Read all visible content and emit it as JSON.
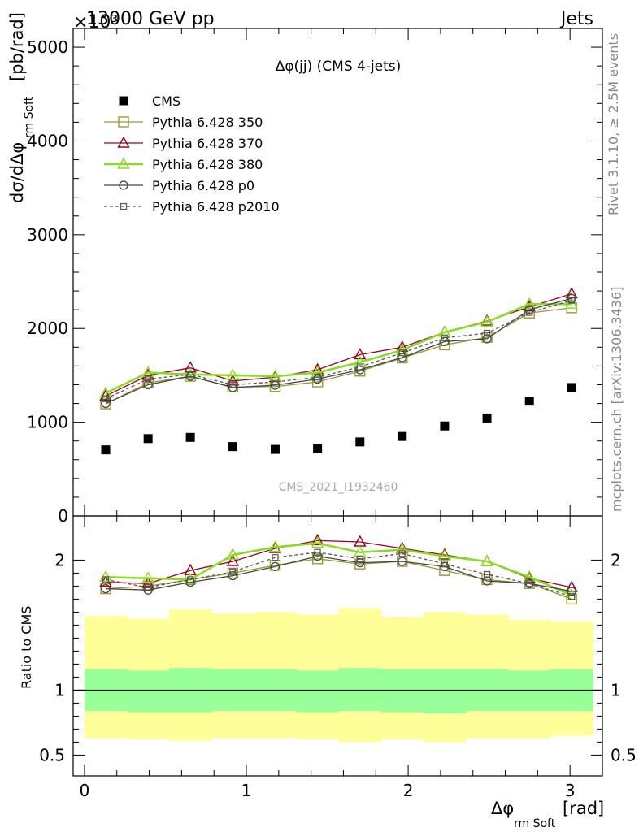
{
  "header": {
    "title_left": "13000 GeV pp",
    "title_right": "Jets",
    "exponent": "×10³"
  },
  "side_labels": {
    "rivet": "Rivet 3.1.10, ≥ 2.5M events",
    "mcplots": "mcplots.cern.ch [arXiv:1306.3436]"
  },
  "watermark": "CMS_2021_I1932460",
  "chart_data": [
    {
      "type": "scatter",
      "title": "Δφ(jj) (CMS 4-jets)",
      "ylabel": "dσ/dΔφ",
      "ylabel_sub": "rm Soft",
      "ylabel_unit": "[pb/rad]",
      "xlim": [
        -0.07,
        3.2
      ],
      "ylim": [
        0,
        5200
      ],
      "x_ticks": [
        0,
        1,
        2,
        3
      ],
      "y_ticks": [
        {
          "v": 0,
          "label": "0"
        },
        {
          "v": 1000,
          "label": "1000"
        },
        {
          "v": 2000,
          "label": "2000"
        },
        {
          "v": 3000,
          "label": "3000"
        },
        {
          "v": 4000,
          "label": "4000"
        },
        {
          "v": 5000,
          "label": "5000"
        }
      ],
      "legend_position": "top-left",
      "x": [
        0.131,
        0.393,
        0.654,
        0.916,
        1.178,
        1.44,
        1.702,
        1.963,
        2.225,
        2.487,
        2.749,
        3.01
      ],
      "series": [
        {
          "name": "CMS",
          "style": "data",
          "color": "#000000",
          "marker": "square-filled",
          "values": [
            705,
            825,
            838,
            740,
            710,
            715,
            790,
            848,
            960,
            1045,
            1225,
            1370
          ]
        },
        {
          "name": "Pythia 6.428 350",
          "color": "#999933",
          "marker": "square-open",
          "dash": "",
          "values": [
            1195,
            1420,
            1490,
            1375,
            1380,
            1430,
            1545,
            1685,
            1825,
            1905,
            2165,
            2220
          ]
        },
        {
          "name": "Pythia 6.428 370",
          "color": "#990022",
          "marker": "triangle-open",
          "dash": "",
          "values": [
            1280,
            1500,
            1580,
            1440,
            1480,
            1560,
            1720,
            1800,
            1960,
            2080,
            2230,
            2370
          ]
        },
        {
          "name": "Pythia 6.428 380",
          "color": "#88dd22",
          "marker": "triangle-open",
          "dash": "",
          "width": 2.5,
          "values": [
            1310,
            1530,
            1510,
            1500,
            1490,
            1530,
            1640,
            1770,
            1960,
            2070,
            2260,
            2260
          ]
        },
        {
          "name": "Pythia 6.428 p0",
          "color": "#444444",
          "marker": "circle-open",
          "dash": "",
          "values": [
            1200,
            1400,
            1490,
            1370,
            1395,
            1460,
            1560,
            1690,
            1860,
            1890,
            2200,
            2320
          ]
        },
        {
          "name": "Pythia 6.428 p2010",
          "color": "#555555",
          "marker": "square-small-open",
          "dash": "4,3",
          "values": [
            1250,
            1460,
            1510,
            1400,
            1430,
            1480,
            1590,
            1740,
            1900,
            1950,
            2170,
            2300
          ]
        }
      ]
    },
    {
      "type": "line",
      "ylabel": "Ratio to CMS",
      "xlabel": "Δφ",
      "xlabel_sub": "rm Soft",
      "xlabel_unit": "[rad]",
      "xlim": [
        -0.07,
        3.2
      ],
      "ylim": [
        0.34,
        2.34
      ],
      "x_ticks": [
        0,
        1,
        2,
        3
      ],
      "y_ticks": [
        {
          "v": 0.5,
          "label": "0.5"
        },
        {
          "v": 1,
          "label": "1"
        },
        {
          "v": 2,
          "label": "2"
        }
      ],
      "bin_edges": [
        0,
        0.262,
        0.524,
        0.785,
        1.047,
        1.309,
        1.571,
        1.833,
        2.094,
        2.356,
        2.618,
        2.88,
        3.141
      ],
      "band_inner": {
        "color": "#99ff99",
        "lo": [
          0.84,
          0.83,
          0.83,
          0.84,
          0.84,
          0.83,
          0.84,
          0.83,
          0.82,
          0.84,
          0.84,
          0.84
        ],
        "hi": [
          1.16,
          1.15,
          1.17,
          1.16,
          1.16,
          1.15,
          1.17,
          1.16,
          1.16,
          1.16,
          1.15,
          1.16
        ]
      },
      "band_outer": {
        "color": "#ffff99",
        "lo": [
          0.63,
          0.62,
          0.61,
          0.63,
          0.63,
          0.62,
          0.6,
          0.62,
          0.6,
          0.63,
          0.63,
          0.65
        ],
        "hi": [
          1.57,
          1.55,
          1.62,
          1.59,
          1.6,
          1.58,
          1.63,
          1.56,
          1.6,
          1.58,
          1.54,
          1.53
        ]
      },
      "series": [
        {
          "name": "Pythia 6.428 350",
          "values": [
            1.78,
            1.8,
            1.85,
            1.9,
            1.96,
            2.01,
            1.97,
            1.99,
            1.92,
            1.85,
            1.82,
            1.7
          ]
        },
        {
          "name": "Pythia 6.428 370",
          "values": [
            1.83,
            1.82,
            1.92,
            1.99,
            2.09,
            2.15,
            2.14,
            2.09,
            2.04,
            1.99,
            1.86,
            1.79
          ]
        },
        {
          "name": "Pythia 6.428 380",
          "values": [
            1.87,
            1.86,
            1.85,
            2.04,
            2.1,
            2.13,
            2.06,
            2.08,
            2.03,
            1.99,
            1.87,
            1.73
          ]
        },
        {
          "name": "Pythia 6.428 p0",
          "values": [
            1.78,
            1.77,
            1.83,
            1.88,
            1.95,
            2.03,
            1.98,
            1.99,
            1.95,
            1.84,
            1.82,
            1.76
          ]
        },
        {
          "name": "Pythia 6.428 p2010",
          "values": [
            1.85,
            1.79,
            1.85,
            1.91,
            2.02,
            2.06,
            2.01,
            2.05,
            1.97,
            1.89,
            1.82,
            1.72
          ]
        }
      ]
    }
  ]
}
